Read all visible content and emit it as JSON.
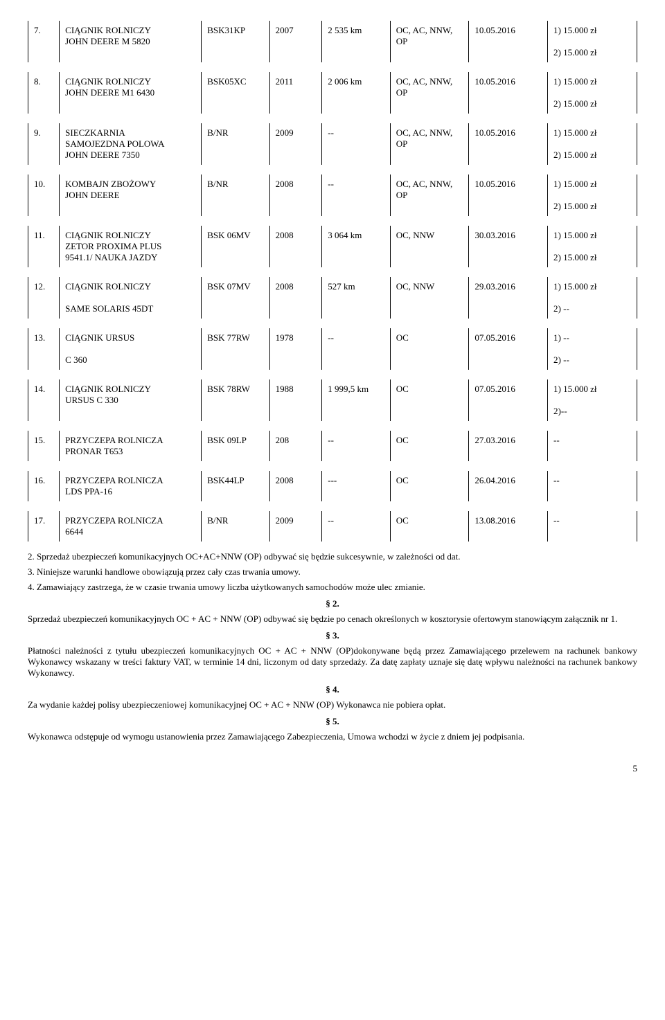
{
  "table": {
    "columns": [
      "num",
      "desc",
      "reg",
      "year",
      "km",
      "cov",
      "date",
      "sum"
    ],
    "rows": [
      {
        "num": "7.",
        "desc": "CIĄGNIK ROLNICZY\nJOHN DEERE M 5820",
        "reg": "BSK31KP",
        "year": "2007",
        "km": "2 535 km",
        "cov": "OC, AC, NNW, OP",
        "date": "10.05.2016",
        "sum": "1) 15.000 zł\n\n2) 15.000 zł"
      },
      {
        "num": "8.",
        "desc": "CIĄGNIK ROLNICZY\nJOHN DEERE M1 6430",
        "reg": "BSK05XC",
        "year": "2011",
        "km": "2 006 km",
        "cov": "OC, AC, NNW, OP",
        "date": "10.05.2016",
        "sum": "1) 15.000 zł\n\n2) 15.000 zł"
      },
      {
        "num": "9.",
        "desc": "SIECZKARNIA\nSAMOJEZDNA POLOWA\nJOHN DEERE 7350",
        "reg": "B/NR",
        "year": "2009",
        "km": "--",
        "cov": "OC, AC, NNW, OP",
        "date": "10.05.2016",
        "sum": "1) 15.000 zł\n\n2) 15.000 zł"
      },
      {
        "num": "10.",
        "desc": "KOMBAJN ZBOŻOWY\nJOHN DEERE",
        "reg": "B/NR",
        "year": "2008",
        "km": "--",
        "cov": "OC, AC, NNW, OP",
        "date": "10.05.2016",
        "sum": "1) 15.000 zł\n\n2) 15.000 zł"
      },
      {
        "num": "11.",
        "desc": "CIĄGNIK ROLNICZY\nZETOR PROXIMA PLUS\n9541.1/ NAUKA JAZDY",
        "reg": "BSK 06MV",
        "year": "2008",
        "km": "3 064 km",
        "cov": "OC, NNW",
        "date": "30.03.2016",
        "sum": "1) 15.000 zł\n\n2) 15.000 zł"
      },
      {
        "num": "12.",
        "desc": "CIĄGNIK ROLNICZY\n\nSAME SOLARIS 45DT",
        "reg": "BSK 07MV",
        "year": "2008",
        "km": "527 km",
        "cov": "OC, NNW",
        "date": "29.03.2016",
        "sum": "1) 15.000 zł\n\n2) --"
      },
      {
        "num": "13.",
        "desc": "CIĄGNIK URSUS\n\nC 360",
        "reg": "BSK 77RW",
        "year": "1978",
        "km": "--",
        "cov": "OC",
        "date": "07.05.2016",
        "sum": "1) --\n\n2) --"
      },
      {
        "num": "14.",
        "desc": "CIĄGNIK ROLNICZY\nURSUS C 330",
        "reg": "BSK 78RW",
        "year": "1988",
        "km": "1 999,5 km",
        "cov": "OC",
        "date": "07.05.2016",
        "sum": "1) 15.000 zł\n\n2)--"
      },
      {
        "num": "15.",
        "desc": "PRZYCZEPA ROLNICZA\nPRONAR T653",
        "reg": "BSK 09LP",
        "year": "208",
        "km": "--",
        "cov": "OC",
        "date": "27.03.2016",
        "sum": "--"
      },
      {
        "num": "16.",
        "desc": "PRZYCZEPA ROLNICZA\nLDS PPA-16",
        "reg": "BSK44LP",
        "year": "2008",
        "km": "---",
        "cov": "OC",
        "date": "26.04.2016",
        "sum": "--"
      },
      {
        "num": "17.",
        "desc": "PRZYCZEPA ROLNICZA\n6644",
        "reg": "B/NR",
        "year": "2009",
        "km": "--",
        "cov": "OC",
        "date": "13.08.2016",
        "sum": "--"
      }
    ]
  },
  "prose": {
    "p1": "2. Sprzedaż ubezpieczeń komunikacyjnych OC+AC+NNW (OP) odbywać się będzie sukcesywnie, w zależności od dat.",
    "p2": "3. Niniejsze warunki handlowe obowiązują przez cały czas trwania umowy.",
    "p3": "4. Zamawiający zastrzega, że w czasie trwania umowy liczba użytkowanych samochodów może ulec zmianie.",
    "s2": "§ 2.",
    "p4": "Sprzedaż ubezpieczeń komunikacyjnych OC + AC + NNW (OP) odbywać się będzie po cenach określonych w kosztorysie ofertowym stanowiącym załącznik nr 1.",
    "s3": "§ 3.",
    "p5": "Płatności należności z tytułu ubezpieczeń komunikacyjnych OC + AC + NNW (OP)dokonywane będą przez Zamawiającego przelewem na rachunek bankowy Wykonawcy wskazany w treści faktury VAT, w terminie 14 dni, liczonym od daty sprzedaży. Za datę zapłaty uznaje się datę wpływu należności na rachunek bankowy Wykonawcy.",
    "s4": "§ 4.",
    "p6": "Za wydanie każdej polisy ubezpieczeniowej komunikacyjnej OC + AC + NNW (OP) Wykonawca nie pobiera opłat.",
    "s5": "§ 5.",
    "p7": "Wykonawca odstępuje od wymogu ustanowienia przez Zamawiającego Zabezpieczenia, Umowa wchodzi w życie z dniem jej podpisania.",
    "pagenum": "5"
  }
}
